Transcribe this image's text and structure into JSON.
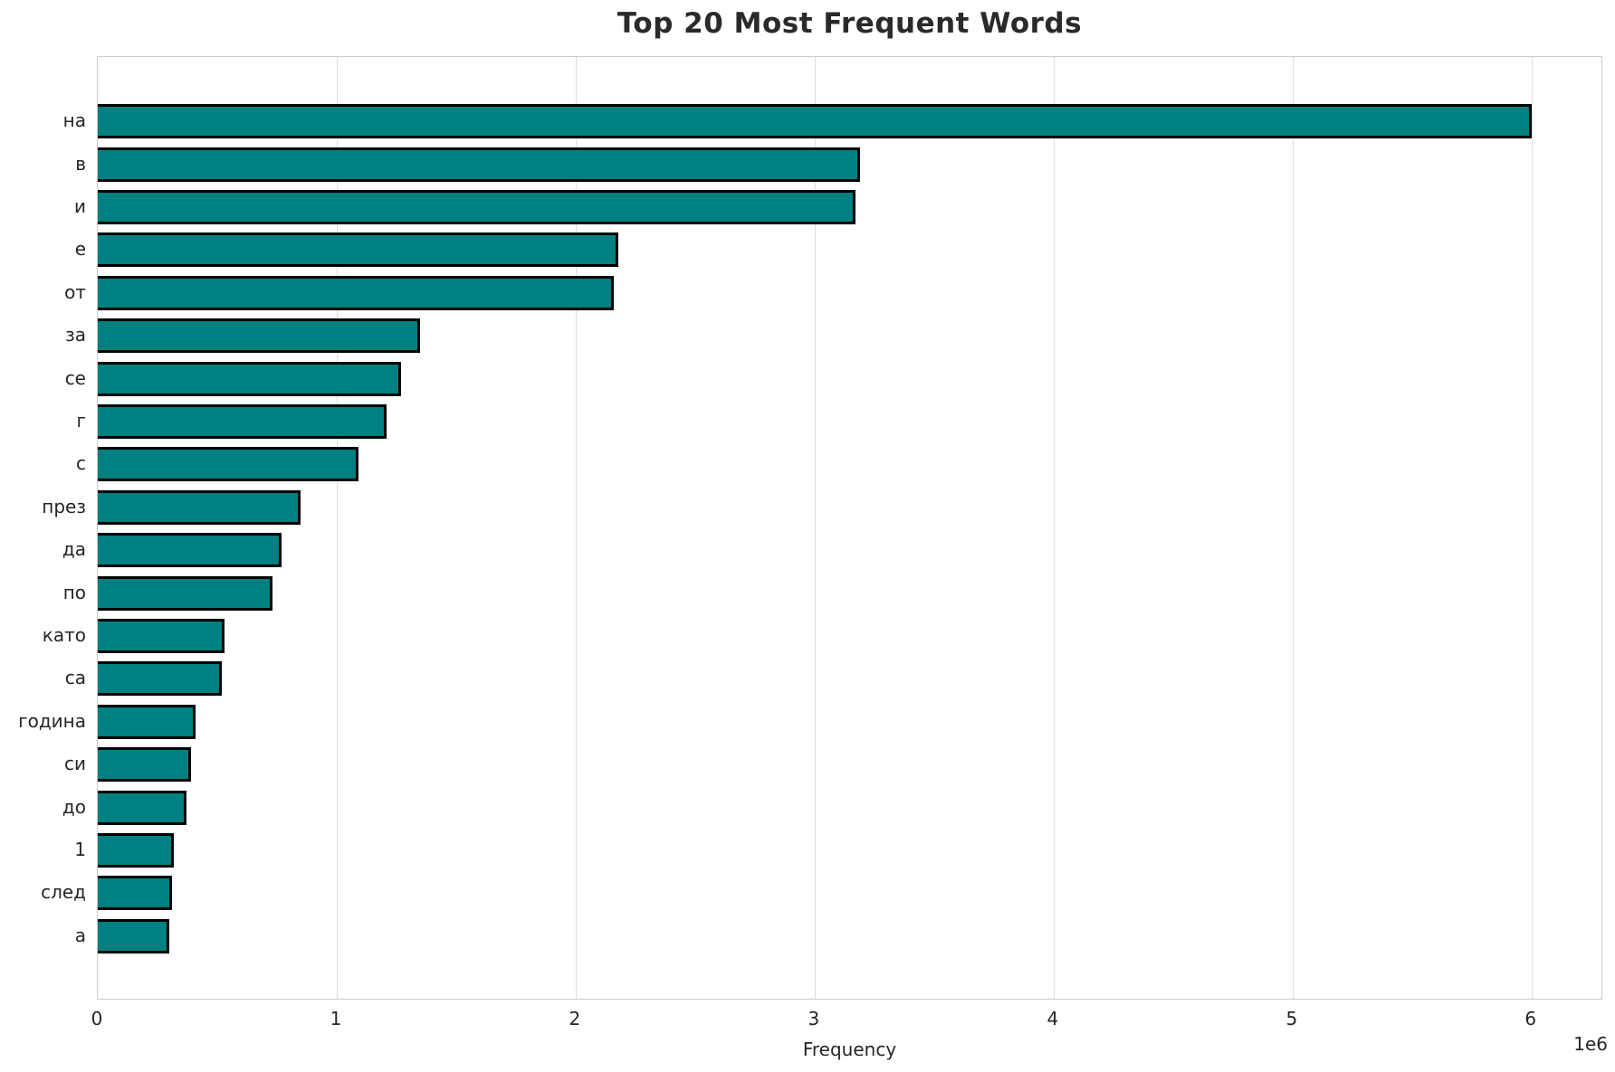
{
  "chart_data": {
    "type": "bar",
    "orientation": "horizontal",
    "title": "Top 20 Most Frequent Words",
    "xlabel": "Frequency",
    "offset_label": "1e6",
    "categories": [
      "на",
      "в",
      "и",
      "е",
      "от",
      "за",
      "се",
      "г",
      "с",
      "през",
      "да",
      "по",
      "като",
      "са",
      "година",
      "си",
      "до",
      "1",
      "след",
      "а"
    ],
    "values": [
      6000000,
      3190000,
      3170000,
      2180000,
      2160000,
      1350000,
      1270000,
      1210000,
      1090000,
      850000,
      770000,
      730000,
      530000,
      520000,
      410000,
      390000,
      370000,
      320000,
      310000,
      300000
    ],
    "xlim": [
      0,
      6300000
    ],
    "xticks": [
      0,
      1000000,
      2000000,
      3000000,
      4000000,
      5000000,
      6000000
    ],
    "xtick_labels": [
      "0",
      "1",
      "2",
      "3",
      "4",
      "5",
      "6"
    ],
    "grid": true,
    "legend": false,
    "colors": {
      "bar_fill": "#008080",
      "bar_edge": "#000000",
      "grid": "#dedede",
      "spine": "#cccccc",
      "text": "#262626",
      "title": "#2a2a2a",
      "background": "#ffffff"
    }
  }
}
